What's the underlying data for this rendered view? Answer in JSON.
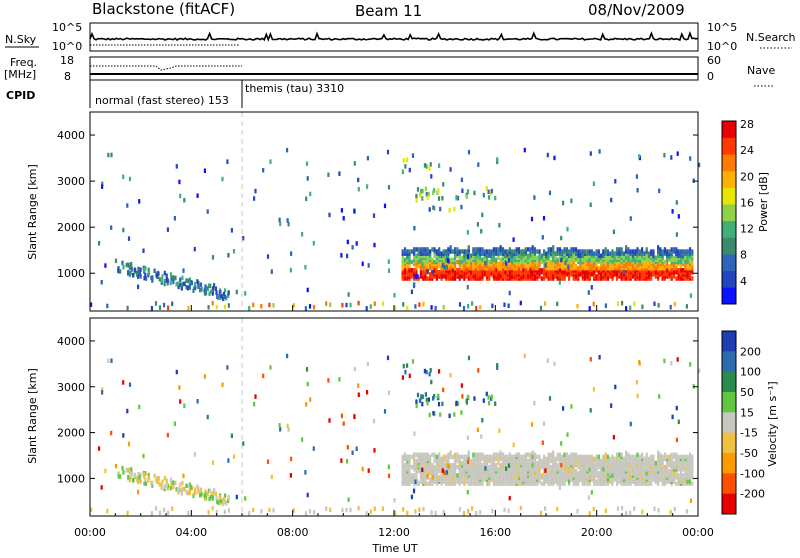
{
  "header": {
    "radar_title": "Blackstone (fitACF)",
    "beam": "Beam 11",
    "date": "08/Nov/2009"
  },
  "param_panels": {
    "nsky_label": "N.Sky",
    "nsky_ticks": [
      "10^5",
      "10^0"
    ],
    "nsearch_label": "N.Search",
    "nsearch_ticks": [
      "10^5",
      "10^0"
    ],
    "freq_label_top": "Freq.",
    "freq_label_bottom": "[MHz]",
    "freq_ticks": [
      "18",
      "8"
    ],
    "nave_label": "Nave",
    "nave_ticks": [
      "60",
      "0"
    ],
    "cpid_label": "CPID",
    "cpid_segments": [
      {
        "name": "normal (fast stereo)",
        "id": "153",
        "start_hour": 0,
        "end_hour": 6.0
      },
      {
        "name": "themis (tau)",
        "id": "3310",
        "start_hour": 6.0,
        "end_hour": 24
      }
    ]
  },
  "chart_data": [
    {
      "type": "heatmap",
      "name": "power",
      "xlabel": "",
      "ylabel": "Slant Range [km]",
      "xlim_hours": [
        0,
        24
      ],
      "ylim_km": [
        180,
        4500
      ],
      "yticks": [
        "1000",
        "2000",
        "3000",
        "4000"
      ],
      "colorbar": {
        "label": "Power [dB]",
        "ticks": [
          "4",
          "8",
          "12",
          "16",
          "20",
          "24",
          "28"
        ],
        "colors": [
          "#0a12ff",
          "#2444c0",
          "#2d66b8",
          "#3a8a6f",
          "#3fb078",
          "#8fd24a",
          "#e6e600",
          "#ffb000",
          "#ff7a00",
          "#ff3a00",
          "#e80000"
        ]
      },
      "features": [
        {
          "desc": "main band",
          "start_hour": 12.3,
          "end_hour": 23.8,
          "range_km": [
            900,
            1500
          ]
        },
        {
          "desc": "upper patches",
          "start_hour": 12.0,
          "end_hour": 15.5,
          "range_km": [
            2400,
            3700
          ]
        },
        {
          "desc": "morning patch",
          "start_hour": 1.0,
          "end_hour": 5.5,
          "range_km": [
            500,
            1200
          ]
        },
        {
          "desc": "ground scatter",
          "start_hour": 0,
          "end_hour": 24,
          "range_km": [
            180,
            350
          ]
        }
      ]
    },
    {
      "type": "heatmap",
      "name": "velocity",
      "xlabel": "Time UT",
      "ylabel": "Slant Range [km]",
      "xlim_hours": [
        0,
        24
      ],
      "ylim_km": [
        180,
        4500
      ],
      "yticks": [
        "1000",
        "2000",
        "3000",
        "4000"
      ],
      "colorbar": {
        "label": "Velocity [m s⁻¹]",
        "ticks": [
          "200",
          "100",
          "50",
          "15",
          "-15",
          "-50",
          "-100",
          "-200"
        ],
        "colors": [
          "#1e3cb4",
          "#2b6cb0",
          "#2a8c4a",
          "#60c840",
          "#c8c8c0",
          "#f0c040",
          "#ff9a00",
          "#ff5000",
          "#e80000"
        ]
      },
      "xticks": [
        "00:00",
        "04:00",
        "08:00",
        "12:00",
        "16:00",
        "20:00",
        "00:00"
      ]
    }
  ]
}
